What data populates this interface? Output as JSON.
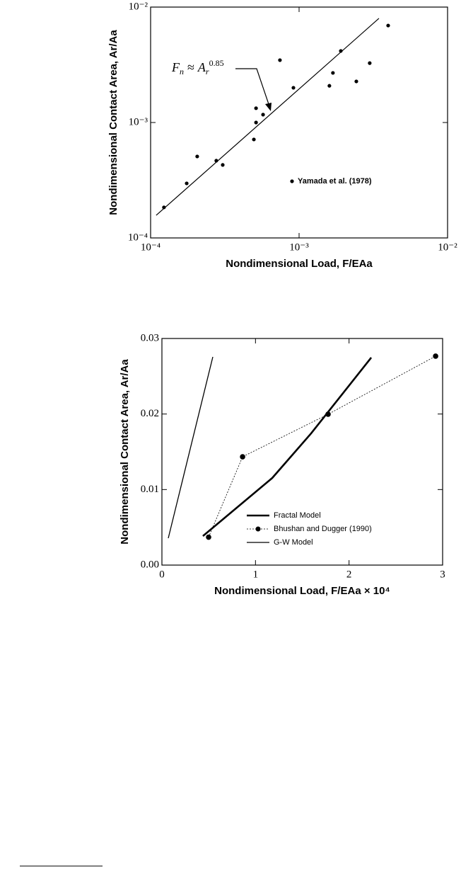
{
  "chart_data": [
    {
      "type": "scatter",
      "xlabel": "Nondimensional Load, F/EAa",
      "ylabel": "Nondimensional Contact Area,  Ar/Aa",
      "xscale": "log",
      "yscale": "log",
      "xlim": [
        0.0001,
        0.01
      ],
      "ylim": [
        0.0001,
        0.01
      ],
      "xticks": [
        {
          "value": 0.0001,
          "label": "10⁻⁴"
        },
        {
          "value": 0.001,
          "label": "10⁻³"
        },
        {
          "value": 0.01,
          "label": "10⁻²"
        }
      ],
      "yticks": [
        {
          "value": 0.0001,
          "label": "10⁻⁴"
        },
        {
          "value": 0.001,
          "label": "10⁻³"
        },
        {
          "value": 0.01,
          "label": "10⁻²"
        }
      ],
      "legend": "lower right",
      "series": [
        {
          "name": "Yamada et al. (1978)",
          "color": "#000000",
          "x": [
            0.000123,
            0.000175,
            0.000206,
            0.000277,
            0.000306,
            0.000496,
            0.000513,
            0.000513,
            0.000572,
            0.000743,
            0.000916,
            0.0016,
            0.00169,
            0.00191,
            0.00243,
            0.00299,
            0.00398
          ],
          "values": [
            0.000184,
            0.000297,
            0.000508,
            0.000467,
            0.000429,
            0.000713,
            0.001,
            0.00133,
            0.00117,
            0.00347,
            0.002,
            0.00208,
            0.00269,
            0.00417,
            0.00227,
            0.00327,
            0.00692
          ]
        }
      ],
      "fit": {
        "color": "#000000",
        "x": [
          0.000109,
          0.00345
        ],
        "values": [
          0.000157,
          0.00798
        ]
      },
      "annotation": {
        "lhs": "F",
        "lhs_sub": "n",
        "op": "≈",
        "rhs": "A",
        "rhs_sub": "r",
        "rhs_sup": "0.85"
      }
    },
    {
      "type": "line",
      "xlabel": "Nondimensional  Load,  F/EAa × 10⁴",
      "ylabel": "Nondimensional Contact Area, Ar/Aa",
      "xlim": [
        0,
        3
      ],
      "ylim": [
        0,
        0.03
      ],
      "xticks": [
        0,
        1,
        2,
        3
      ],
      "yticks": [
        {
          "value": 0,
          "label": "0.00"
        },
        {
          "value": 0.01,
          "label": "0.01"
        },
        {
          "value": 0.02,
          "label": "0.02"
        },
        {
          "value": 0.03,
          "label": "0.03"
        }
      ],
      "legend": "lower right",
      "series": [
        {
          "name": "Fractal Model",
          "color": "#000000",
          "line_width": 2.6,
          "dash": "none",
          "marker": false,
          "x": [
            0.438,
            1.179,
            1.595,
            2.237
          ],
          "values": [
            0.00384,
            0.01153,
            0.01744,
            0.02747
          ]
        },
        {
          "name": "Bhushan and Dugger (1990)",
          "color": "#000000",
          "line_width": 0.8,
          "dash": "2 2",
          "marker": true,
          "x": [
            0.499,
            0.862,
            1.776,
            2.925
          ],
          "values": [
            0.0037,
            0.01434,
            0.01997,
            0.02766
          ]
        },
        {
          "name": "G-W  Model",
          "color": "#000000",
          "line_width": 1.3,
          "dash": "none",
          "marker": false,
          "x": [
            0.068,
            0.544
          ],
          "values": [
            0.00356,
            0.02756
          ]
        }
      ]
    }
  ]
}
